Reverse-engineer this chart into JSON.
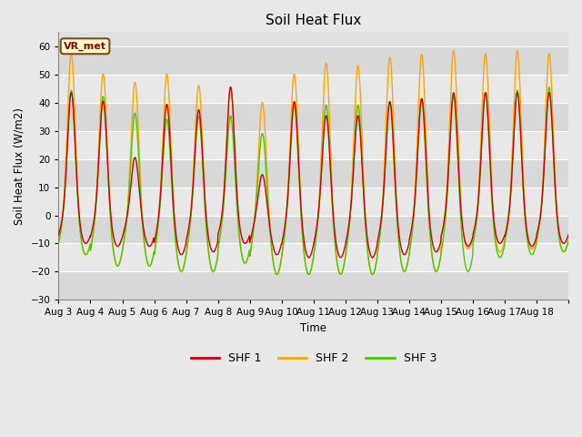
{
  "title": "Soil Heat Flux",
  "ylabel": "Soil Heat Flux (W/m2)",
  "xlabel": "Time",
  "ylim": [
    -30,
    65
  ],
  "yticks": [
    -30,
    -20,
    -10,
    0,
    10,
    20,
    30,
    40,
    50,
    60
  ],
  "background_color": "#e8e8e8",
  "plot_bg_color": "#e0e0e0",
  "shf1_color": "#cc0000",
  "shf2_color": "#ffa500",
  "shf3_color": "#44cc00",
  "vr_met_label": "VR_met",
  "legend_labels": [
    "SHF 1",
    "SHF 2",
    "SHF 3"
  ],
  "x_tick_labels": [
    "Aug 3",
    "Aug 4",
    "Aug 5",
    "Aug 6",
    "Aug 7",
    "Aug 8",
    "Aug 9",
    "Aug 10",
    "Aug 11",
    "Aug 12",
    "Aug 13",
    "Aug 14",
    "Aug 15",
    "Aug 16",
    "Aug 17",
    "Aug 18"
  ],
  "n_days": 16,
  "points_per_day": 144,
  "shf2_day_peaks": [
    58,
    51,
    48,
    51,
    47,
    46,
    41,
    51,
    55,
    54,
    57,
    58,
    59,
    58,
    59,
    58
  ],
  "shf1_day_peaks": [
    44,
    41,
    21,
    40,
    38,
    46,
    15,
    41,
    36,
    36,
    41,
    42,
    44,
    44,
    44,
    44
  ],
  "shf3_day_peaks": [
    45,
    43,
    37,
    35,
    36,
    36,
    30,
    40,
    40,
    40,
    41,
    42,
    43,
    44,
    45,
    46
  ],
  "shf1_night_mins": [
    -10,
    -11,
    -11,
    -14,
    -13,
    -10,
    -14,
    -15,
    -15,
    -15,
    -14,
    -13,
    -11,
    -10,
    -11,
    -10
  ],
  "shf2_night_mins": [
    -14,
    -18,
    -18,
    -20,
    -20,
    -17,
    -21,
    -21,
    -21,
    -21,
    -20,
    -20,
    -12,
    -13,
    -12,
    -13
  ],
  "shf3_night_mins": [
    -14,
    -18,
    -18,
    -20,
    -20,
    -17,
    -21,
    -21,
    -21,
    -21,
    -20,
    -20,
    -20,
    -15,
    -14,
    -13
  ]
}
